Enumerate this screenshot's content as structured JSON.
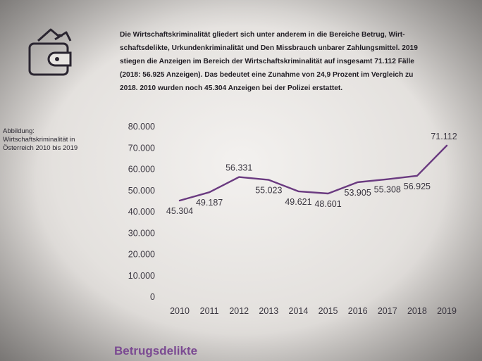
{
  "intro": {
    "line1": "Die Wirtschaftskriminalität gliedert sich unter anderem in die Bereiche Betrug, Wirt-",
    "line2": "schaftsdelikte, Urkundenkriminalität und Den Missbrauch unbarer Zahlungsmittel. 2019",
    "line3": "stiegen die Anzeigen im Bereich der Wirtschaftskriminalität auf insgesamt 71.112 Fälle",
    "line4": "(2018: 56.925 Anzeigen). Das bedeutet eine Zunahme von 24,9 Prozent im Vergleich zu",
    "line5": "2018. 2010 wurden noch 45.304 Anzeigen bei der Polizei erstattet."
  },
  "caption": {
    "line1": "Abbildung:",
    "line2": "Wirtschaftskriminalität in",
    "line3": "Österreich 2010 bis 2019"
  },
  "section_title": "Betrugsdelikte",
  "icon": "wallet-icon",
  "colors": {
    "line": "#6a3a80",
    "heading": "#7b4a92"
  },
  "chart_data": {
    "type": "line",
    "x": [
      "2010",
      "2011",
      "2012",
      "2013",
      "2014",
      "2015",
      "2016",
      "2017",
      "2018",
      "2019"
    ],
    "values": [
      45304,
      49187,
      56331,
      55023,
      49621,
      48601,
      53905,
      55308,
      56925,
      71112
    ],
    "data_labels": [
      "45.304",
      "49.187",
      "56.331",
      "55.023",
      "49.621",
      "48.601",
      "53.905",
      "55.308",
      "56.925",
      "71.112"
    ],
    "yticks": [
      0,
      10000,
      20000,
      30000,
      40000,
      50000,
      60000,
      70000,
      80000
    ],
    "ytick_labels": [
      "0",
      "10.000",
      "20.000",
      "30.000",
      "40.000",
      "50.000",
      "60.000",
      "70.000",
      "80.000"
    ],
    "ylim": [
      0,
      80000
    ],
    "grid": false
  }
}
